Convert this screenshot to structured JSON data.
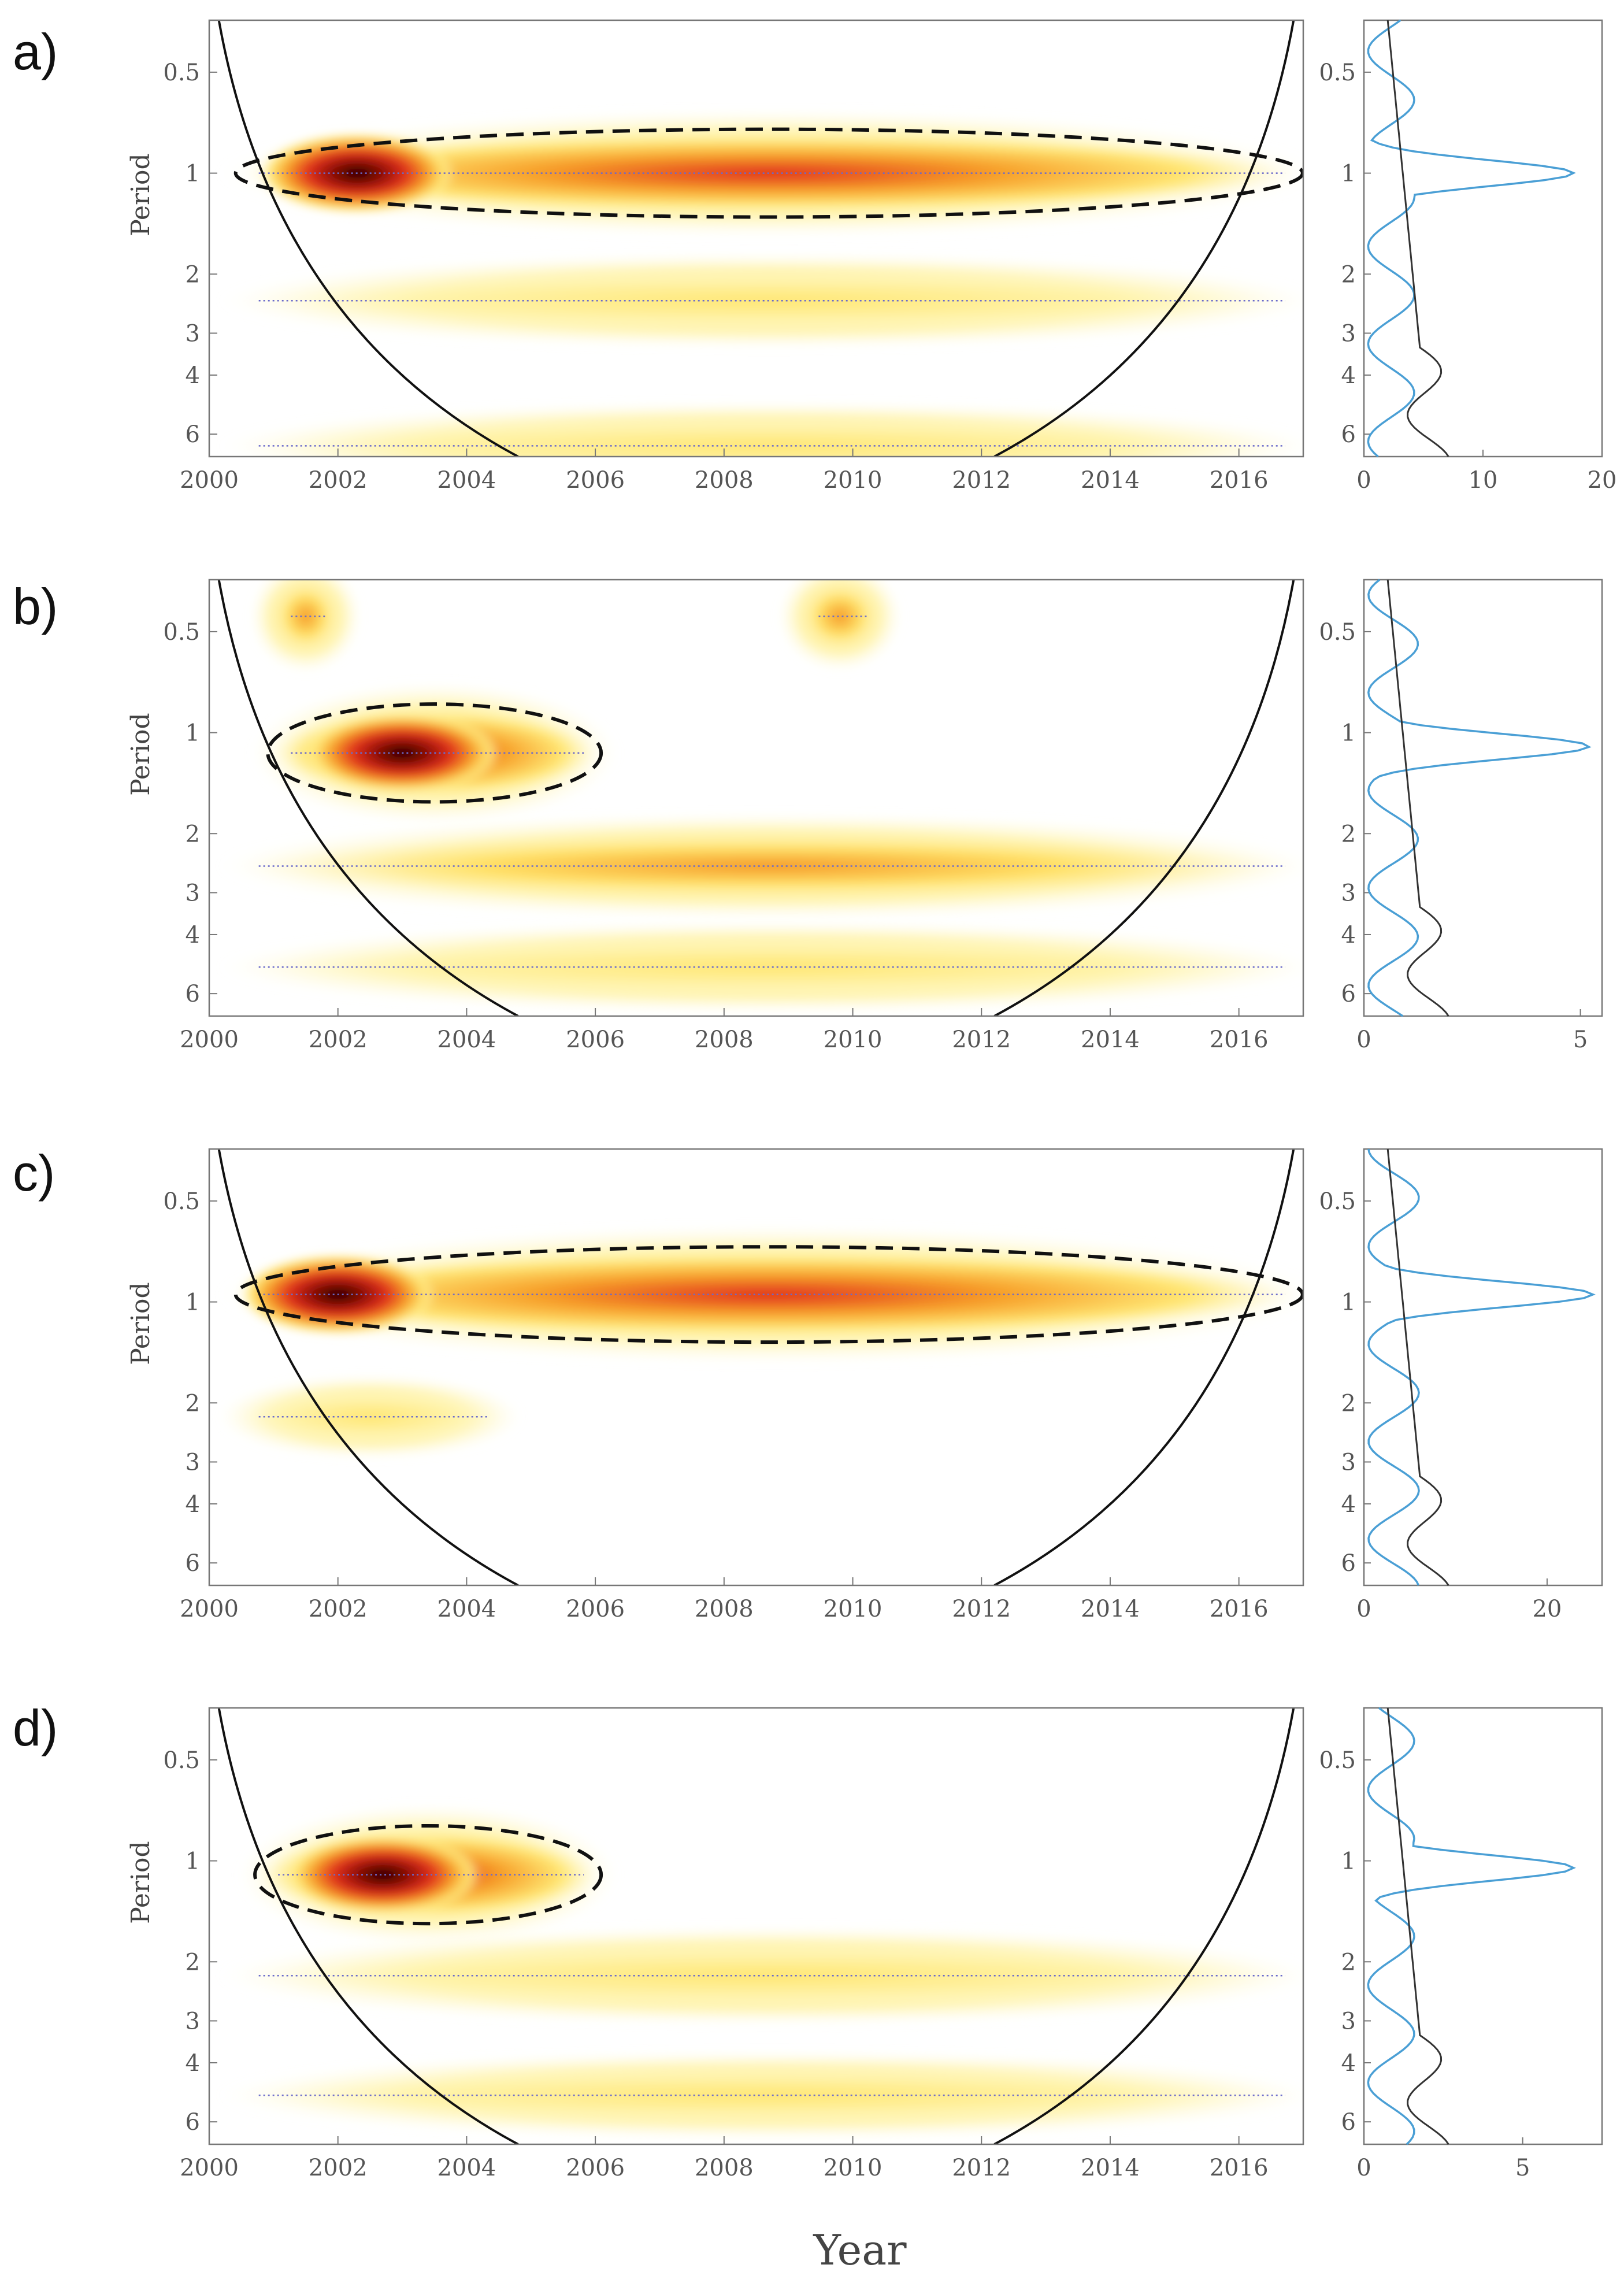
{
  "figure": {
    "xlabel": "Year",
    "ylabel": "Period"
  },
  "colors": {
    "light_yellow": "#fff4b0",
    "yellow": "#ffe673",
    "orange": "#f7a12a",
    "red": "#d9201a",
    "dark": "#2a0000",
    "global_spectrum": "#4a9fd5",
    "significance_line": "#333333",
    "ridge": "#6a6acb"
  },
  "chart_data": [
    {
      "type": "heatmap",
      "panel": "a)",
      "title": "",
      "xlabel": "",
      "ylabel": "Period",
      "xlim": [
        2000,
        2017
      ],
      "ylim": [
        0.35,
        7
      ],
      "xticks": [
        "2000",
        "2002",
        "2004",
        "2006",
        "2008",
        "2010",
        "2012",
        "2014",
        "2016"
      ],
      "yticks": [
        "0.5",
        "1",
        "2",
        "3",
        "4",
        "6"
      ],
      "power_bands": [
        {
          "x": [
            2000.5,
            2016.9
          ],
          "period": 1.0,
          "intensity": 0.75,
          "peak_at": 2002.3,
          "peak_intensity": 1.0
        },
        {
          "x": [
            2000.5,
            2016.9
          ],
          "period": 2.4,
          "intensity": 0.3
        },
        {
          "x": [
            2000.5,
            2016.9
          ],
          "period": 6.5,
          "intensity": 0.2
        }
      ],
      "side": {
        "xlim": [
          0,
          20
        ],
        "xticks": [
          "0",
          "10",
          "20"
        ],
        "peak_value": 17.6,
        "peak_period": 1.0
      }
    },
    {
      "type": "heatmap",
      "panel": "b)",
      "title": "",
      "xlabel": "",
      "ylabel": "Period",
      "xlim": [
        2000,
        2017
      ],
      "ylim": [
        0.35,
        7
      ],
      "xticks": [
        "2000",
        "2002",
        "2004",
        "2006",
        "2008",
        "2010",
        "2012",
        "2014",
        "2016"
      ],
      "yticks": [
        "0.5",
        "1",
        "2",
        "3",
        "4",
        "6"
      ],
      "power_bands": [
        {
          "x": [
            2001,
            2006
          ],
          "period": 1.15,
          "intensity": 0.95,
          "peak_at": 2003.0
        },
        {
          "x": [
            2000.5,
            2016.9
          ],
          "period": 2.5,
          "intensity": 0.45
        },
        {
          "x": [
            2000.5,
            2016.9
          ],
          "period": 5.0,
          "intensity": 0.25
        },
        {
          "x": [
            2001,
            2002
          ],
          "period": 0.45,
          "intensity": 0.55
        },
        {
          "x": [
            2009.2,
            2010.4
          ],
          "period": 0.45,
          "intensity": 0.5
        }
      ],
      "side": {
        "xlim": [
          0,
          5.5
        ],
        "xticks": [
          "0",
          "5"
        ],
        "peak_value": 5.2,
        "peak_period": 1.1
      }
    },
    {
      "type": "heatmap",
      "panel": "c)",
      "title": "",
      "xlabel": "",
      "ylabel": "Period",
      "xlim": [
        2000,
        2017
      ],
      "ylim": [
        0.35,
        7
      ],
      "xticks": [
        "2000",
        "2002",
        "2004",
        "2006",
        "2008",
        "2010",
        "2012",
        "2014",
        "2016"
      ],
      "yticks": [
        "0.5",
        "1",
        "2",
        "3",
        "4",
        "6"
      ],
      "power_bands": [
        {
          "x": [
            2000.5,
            2016.9
          ],
          "period": 0.95,
          "intensity": 0.9,
          "peak_at": 2002.0
        },
        {
          "x": [
            2000.5,
            2004.5
          ],
          "period": 2.2,
          "intensity": 0.15
        }
      ],
      "side": {
        "xlim": [
          0,
          26
        ],
        "xticks": [
          "0",
          "20"
        ],
        "peak_value": 25,
        "peak_period": 0.95
      }
    },
    {
      "type": "heatmap",
      "panel": "d)",
      "title": "",
      "xlabel": "Year",
      "ylabel": "Period",
      "xlim": [
        2000,
        2017
      ],
      "ylim": [
        0.35,
        7
      ],
      "xticks": [
        "2000",
        "2002",
        "2004",
        "2006",
        "2008",
        "2010",
        "2012",
        "2014",
        "2016"
      ],
      "yticks": [
        "0.5",
        "1",
        "2",
        "3",
        "4",
        "6"
      ],
      "power_bands": [
        {
          "x": [
            2000.8,
            2006
          ],
          "period": 1.1,
          "intensity": 0.95,
          "peak_at": 2002.7
        },
        {
          "x": [
            2000.5,
            2016.9
          ],
          "period": 2.2,
          "intensity": 0.35
        },
        {
          "x": [
            2000.5,
            2016.9
          ],
          "period": 5.0,
          "intensity": 0.2
        }
      ],
      "side": {
        "xlim": [
          0,
          7.5
        ],
        "xticks": [
          "0",
          "5"
        ],
        "peak_value": 6.6,
        "peak_period": 1.05
      }
    }
  ]
}
